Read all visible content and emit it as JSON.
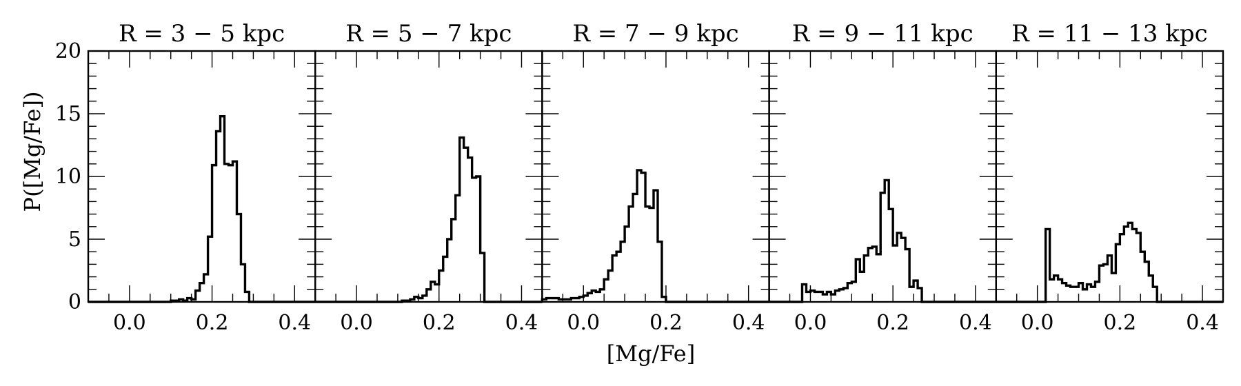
{
  "chart_data": {
    "type": "histogram",
    "xlabel": "[Mg/Fe]",
    "ylabel": "P([Mg/Fe])",
    "xlim": [
      -0.1,
      0.45
    ],
    "ylim": [
      0,
      20
    ],
    "x_ticks": [
      0.0,
      0.2,
      0.4
    ],
    "x_tick_labels": [
      "0.0",
      "0.2",
      "0.4"
    ],
    "y_ticks": [
      0,
      5,
      10,
      15,
      20
    ],
    "y_tick_labels": [
      "0",
      "5",
      "10",
      "15",
      "20"
    ],
    "bin_width": 0.01,
    "grid": false,
    "legend": "none",
    "panels": [
      {
        "title": "R = 3 − 5 kpc",
        "bins_start": -0.1,
        "values": [
          0,
          0,
          0,
          0,
          0,
          0,
          0,
          0,
          0,
          0,
          0,
          0,
          0,
          0,
          0,
          0,
          0,
          0,
          0,
          0,
          0.1,
          0.1,
          0.2,
          0.1,
          0.3,
          0.2,
          0.9,
          1.5,
          2.2,
          5.2,
          10.9,
          13.6,
          14.8,
          11.0,
          10.9,
          11.2,
          7.0,
          3.0,
          0.8,
          0,
          0,
          0,
          0,
          0,
          0,
          0,
          0,
          0,
          0,
          0,
          0,
          0,
          0,
          0,
          0
        ]
      },
      {
        "title": "R = 5 − 7 kpc",
        "bins_start": -0.1,
        "values": [
          0,
          0,
          0,
          0,
          0,
          0,
          0,
          0,
          0,
          0,
          0,
          0,
          0,
          0,
          0,
          0,
          0,
          0,
          0,
          0,
          0,
          0.1,
          0.1,
          0.2,
          0.4,
          0.3,
          0.5,
          1.0,
          1.6,
          1.4,
          2.5,
          3.6,
          5.0,
          6.6,
          8.5,
          13.1,
          12.3,
          11.5,
          9.9,
          10.0,
          3.9,
          0,
          0,
          0,
          0,
          0,
          0,
          0,
          0,
          0,
          0,
          0,
          0,
          0,
          0
        ]
      },
      {
        "title": "R = 7 − 9 kpc",
        "bins_start": -0.1,
        "values": [
          0.2,
          0.3,
          0.3,
          0.3,
          0.2,
          0.2,
          0.2,
          0.3,
          0.3,
          0.4,
          0.5,
          0.7,
          0.9,
          0.8,
          1.0,
          1.8,
          2.5,
          3.7,
          4.0,
          4.8,
          6.0,
          7.6,
          8.6,
          10.5,
          10.3,
          7.6,
          7.5,
          8.9,
          4.8,
          0.4,
          0,
          0,
          0,
          0,
          0,
          0,
          0,
          0,
          0,
          0,
          0,
          0,
          0,
          0,
          0,
          0,
          0,
          0,
          0,
          0,
          0,
          0,
          0,
          0,
          0
        ]
      },
      {
        "title": "R = 9 − 11 kpc",
        "bins_start": -0.1,
        "values": [
          0,
          0,
          0,
          0,
          0,
          0,
          0,
          0,
          1.4,
          0.8,
          0.9,
          0.8,
          0.8,
          0.6,
          0.8,
          0.6,
          0.9,
          1.0,
          1.1,
          1.5,
          1.6,
          3.4,
          2.4,
          3.7,
          4.3,
          4.4,
          3.8,
          8.7,
          9.7,
          7.4,
          4.5,
          5.5,
          5.1,
          4.2,
          1.2,
          1.7,
          1.1,
          0,
          0,
          0,
          0,
          0,
          0,
          0,
          0,
          0,
          0,
          0,
          0,
          0,
          0,
          0,
          0,
          0,
          0
        ]
      },
      {
        "title": "R = 11 − 13 kpc",
        "bins_start": -0.1,
        "values": [
          0,
          0,
          0,
          0,
          0,
          0,
          0,
          0,
          0,
          0,
          0,
          0,
          5.8,
          1.8,
          2.1,
          1.8,
          1.5,
          1.3,
          1.2,
          1.2,
          1.5,
          1.0,
          1.4,
          1.2,
          1.6,
          2.9,
          3.0,
          3.7,
          2.3,
          4.6,
          5.4,
          6.0,
          6.3,
          5.8,
          5.5,
          4.0,
          3.2,
          2.1,
          1.2,
          0,
          0,
          0,
          0,
          0,
          0,
          0,
          0,
          0,
          0,
          0,
          0,
          0,
          0,
          0,
          0
        ]
      }
    ]
  }
}
